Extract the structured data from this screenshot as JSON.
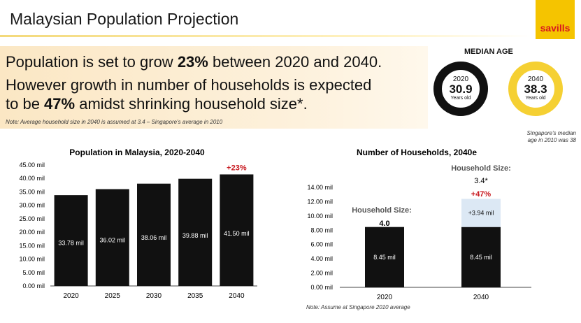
{
  "header": {
    "title": "Malaysian Population Projection",
    "logo_text": "savills",
    "accent_color": "#f5c400"
  },
  "headline": {
    "line1_a": "Population is set to grow ",
    "line1_b": "23%",
    "line1_c": " between 2020 and 2040.",
    "line2": "However growth in number of households is expected",
    "line3_a": "to be ",
    "line3_b": "47%",
    "line3_c": " amidst shrinking household size*.",
    "note": "Note: Average household size in 2040 is assumed at 3.4 – Singapore's average in 2010"
  },
  "median_age": {
    "title": "MEDIAN AGE",
    "items": [
      {
        "year": "2020",
        "value": "30.9",
        "unit": "Years old"
      },
      {
        "year": "2040",
        "value": "38.3",
        "unit": "Years old"
      }
    ],
    "note_line1": "Singapore's median",
    "note_line2": "age in 2010 was 38"
  },
  "chart_data": [
    {
      "type": "bar",
      "title": "Population in Malaysia, 2020-2040",
      "categories": [
        "2020",
        "2025",
        "2030",
        "2035",
        "2040"
      ],
      "values": [
        33.78,
        36.02,
        38.06,
        39.88,
        41.5
      ],
      "value_labels": [
        "33.78 mil",
        "36.02 mil",
        "38.06 mil",
        "39.88 mil",
        "41.50 mil"
      ],
      "ylim": [
        0,
        45
      ],
      "yticks": [
        "0.00 mil",
        "5.00 mil",
        "10.00 mil",
        "15.00 mil",
        "20.00 mil",
        "25.00 mil",
        "30.00 mil",
        "35.00 mil",
        "40.00 mil",
        "45.00 mil"
      ],
      "growth_label": "+23%",
      "bar_color": "#111111",
      "growth_color": "#c8191f"
    },
    {
      "type": "bar",
      "title": "Number of Households, 2040e",
      "categories": [
        "2020",
        "2040"
      ],
      "series": [
        {
          "values": [
            8.45,
            8.45
          ],
          "labels": [
            "8.45 mil",
            "8.45 mil"
          ],
          "color": "#111111"
        },
        {
          "values": [
            0,
            3.94
          ],
          "labels": [
            "",
            "+3.94 mil"
          ],
          "color": "#dce8f4"
        }
      ],
      "ylim": [
        0,
        14
      ],
      "yticks": [
        "0.00 mil",
        "2.00 mil",
        "4.00 mil",
        "6.00 mil",
        "8.00 mil",
        "10.00 mil",
        "12.00 mil",
        "14.00 mil"
      ],
      "annotations": {
        "hh2020_label": "Household Size:",
        "hh2020_value": "4.0",
        "hh2040_label": "Household Size:",
        "hh2040_value": "3.4*",
        "growth": "+47%"
      },
      "note": "Note: Assume at Singapore 2010 average"
    }
  ]
}
